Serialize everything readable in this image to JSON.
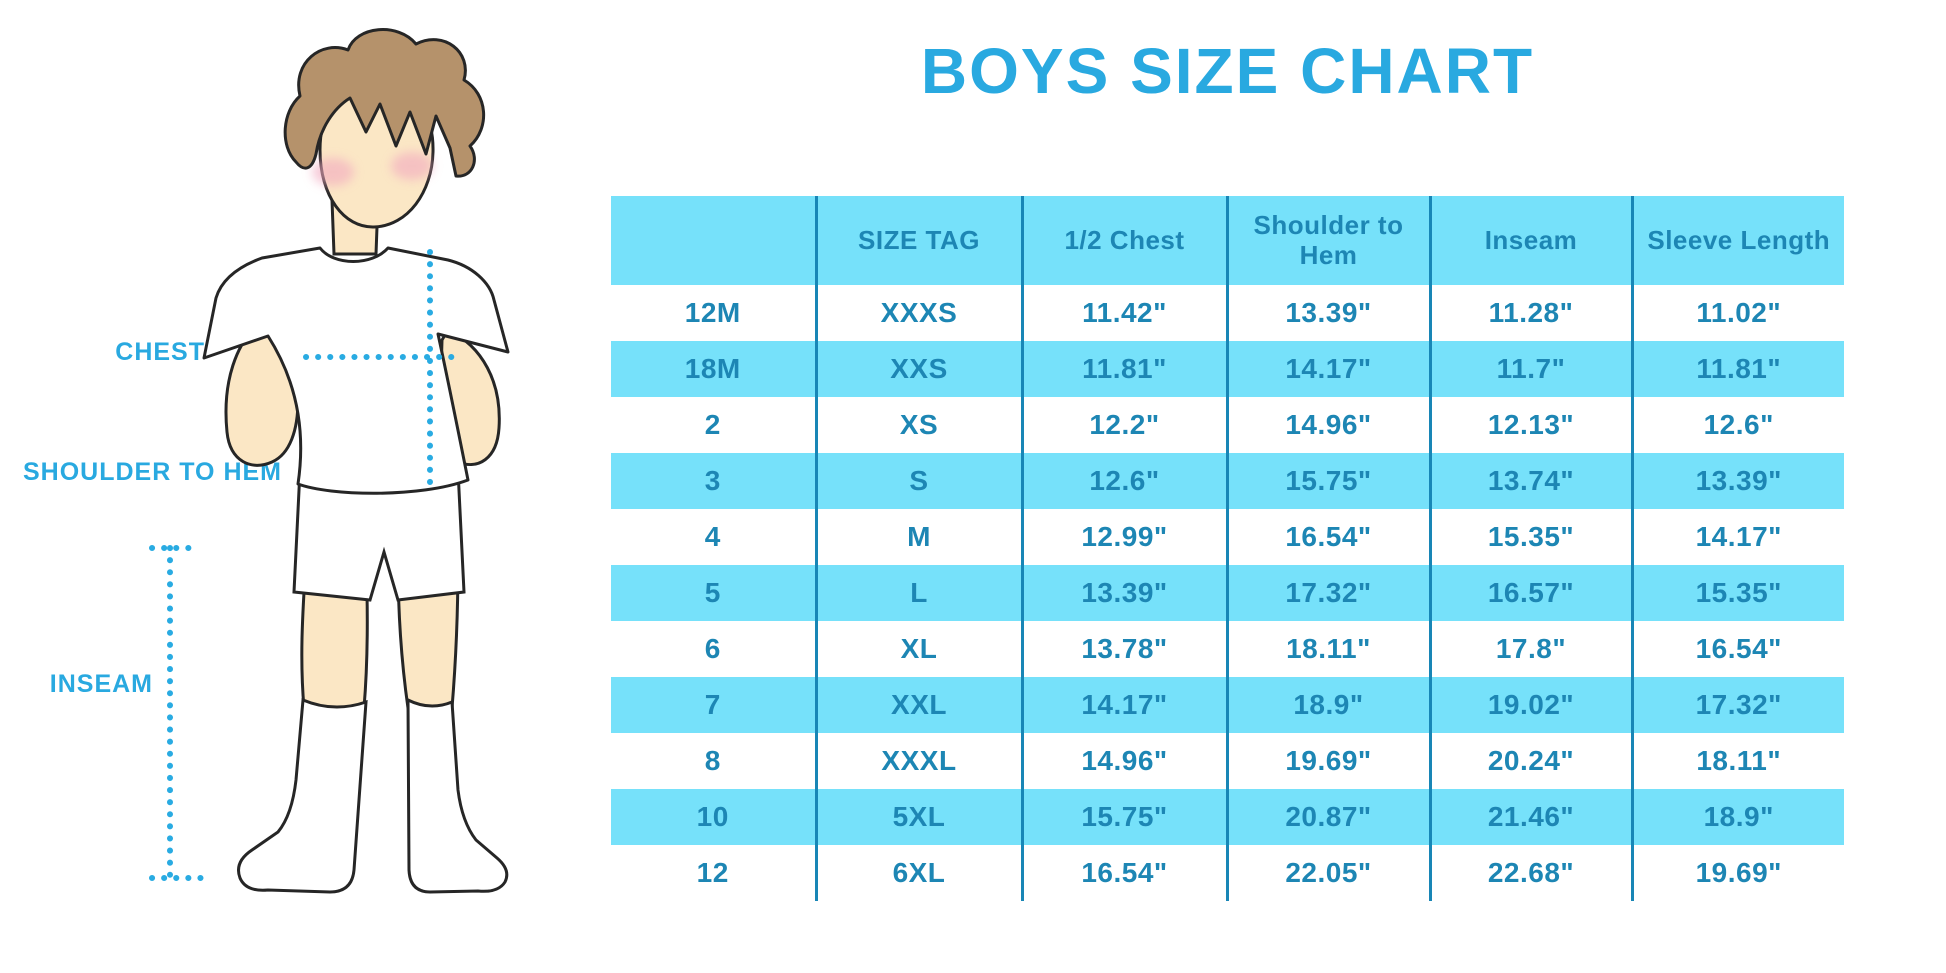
{
  "title": "BOYS SIZE CHART",
  "figure_labels": {
    "chest": "CHEST",
    "shoulder_to_hem": "SHOULDER TO HEM",
    "inseam": "INSEAM"
  },
  "colors": {
    "title_blue": "#29A9E0",
    "band_cyan": "#76E1FA",
    "table_text_blue": "#1D86B4",
    "grid_line_blue": "#1886B6",
    "dotted_line_cyan": "#29ABE2",
    "skin": "#FBE7C5",
    "hair_brown": "#B5926B",
    "blush_pink": "#F2A9C0",
    "outline": "#262626"
  },
  "chart_data": {
    "type": "table",
    "title": "BOYS SIZE CHART",
    "units": "inches",
    "columns": [
      "",
      "SIZE TAG",
      "1/2 Chest",
      "Shoulder to Hem",
      "Inseam",
      "Sleeve Length"
    ],
    "rows": [
      [
        "12M",
        "XXXS",
        "11.42\"",
        "13.39\"",
        "11.28\"",
        "11.02\""
      ],
      [
        "18M",
        "XXS",
        "11.81\"",
        "14.17\"",
        "11.7\"",
        "11.81\""
      ],
      [
        "2",
        "XS",
        "12.2\"",
        "14.96\"",
        "12.13\"",
        "12.6\""
      ],
      [
        "3",
        "S",
        "12.6\"",
        "15.75\"",
        "13.74\"",
        "13.39\""
      ],
      [
        "4",
        "M",
        "12.99\"",
        "16.54\"",
        "15.35\"",
        "14.17\""
      ],
      [
        "5",
        "L",
        "13.39\"",
        "17.32\"",
        "16.57\"",
        "15.35\""
      ],
      [
        "6",
        "XL",
        "13.78\"",
        "18.11\"",
        "17.8\"",
        "16.54\""
      ],
      [
        "7",
        "XXL",
        "14.17\"",
        "18.9\"",
        "19.02\"",
        "17.32\""
      ],
      [
        "8",
        "XXXL",
        "14.96\"",
        "19.69\"",
        "20.24\"",
        "18.11\""
      ],
      [
        "10",
        "5XL",
        "15.75\"",
        "20.87\"",
        "21.46\"",
        "18.9\""
      ],
      [
        "12",
        "6XL",
        "16.54\"",
        "22.05\"",
        "22.68\"",
        "19.69\""
      ]
    ]
  }
}
